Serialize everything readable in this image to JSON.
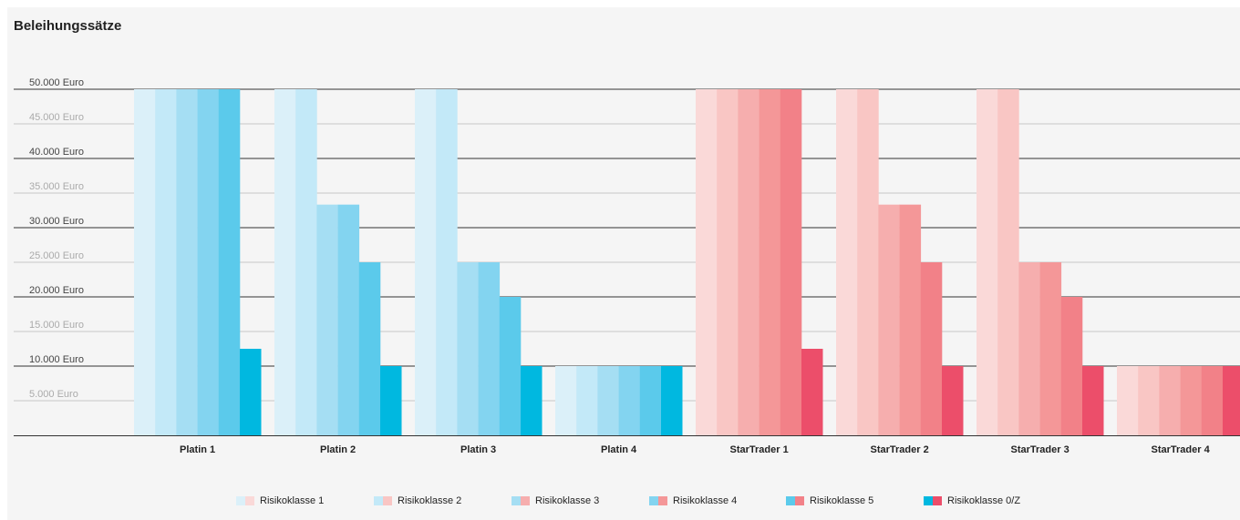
{
  "title": "Beleihungssätze",
  "chart_data": {
    "type": "bar",
    "title": "Beleihungssätze",
    "xlabel": "",
    "ylabel": "",
    "ylim": [
      0,
      50000
    ],
    "yticks": [
      {
        "value": 50000,
        "label": "50.000 Euro",
        "major": true
      },
      {
        "value": 45000,
        "label": "45.000 Euro",
        "major": false
      },
      {
        "value": 40000,
        "label": "40.000 Euro",
        "major": true
      },
      {
        "value": 35000,
        "label": "35.000 Euro",
        "major": false
      },
      {
        "value": 30000,
        "label": "30.000 Euro",
        "major": true
      },
      {
        "value": 25000,
        "label": "25.000 Euro",
        "major": false
      },
      {
        "value": 20000,
        "label": "20.000 Euro",
        "major": true
      },
      {
        "value": 15000,
        "label": "15.000 Euro",
        "major": false
      },
      {
        "value": 10000,
        "label": "10.000 Euro",
        "major": true
      },
      {
        "value": 5000,
        "label": "5.000 Euro",
        "major": false
      }
    ],
    "categories": [
      "Platin 1",
      "Platin 2",
      "Platin 3",
      "Platin 4",
      "StarTrader 1",
      "StarTrader 2",
      "StarTrader 3",
      "StarTrader 4"
    ],
    "series": [
      {
        "name": "Risikoklasse 1",
        "values": [
          50000,
          50000,
          50000,
          10000,
          50000,
          50000,
          50000,
          10000
        ]
      },
      {
        "name": "Risikoklasse 2",
        "values": [
          50000,
          50000,
          50000,
          10000,
          50000,
          50000,
          50000,
          10000
        ]
      },
      {
        "name": "Risikoklasse 3",
        "values": [
          50000,
          33333,
          25000,
          10000,
          50000,
          33333,
          25000,
          10000
        ]
      },
      {
        "name": "Risikoklasse 4",
        "values": [
          50000,
          33333,
          25000,
          10000,
          50000,
          33333,
          25000,
          10000
        ]
      },
      {
        "name": "Risikoklasse 5",
        "values": [
          50000,
          25000,
          20000,
          10000,
          50000,
          25000,
          20000,
          10000
        ]
      },
      {
        "name": "Risikoklasse 0/Z",
        "values": [
          12500,
          10000,
          10000,
          10000,
          12500,
          10000,
          10000,
          10000
        ]
      }
    ],
    "colors": {
      "blue": [
        "#dbf0f9",
        "#c3e9f8",
        "#a5def3",
        "#83d4f0",
        "#5bcaeb",
        "#00b8e0"
      ],
      "red": [
        "#fad9d8",
        "#f9c6c4",
        "#f6aeae",
        "#f49798",
        "#f28188",
        "#ec4e6a"
      ]
    },
    "grid": true,
    "legend_position": "bottom"
  }
}
